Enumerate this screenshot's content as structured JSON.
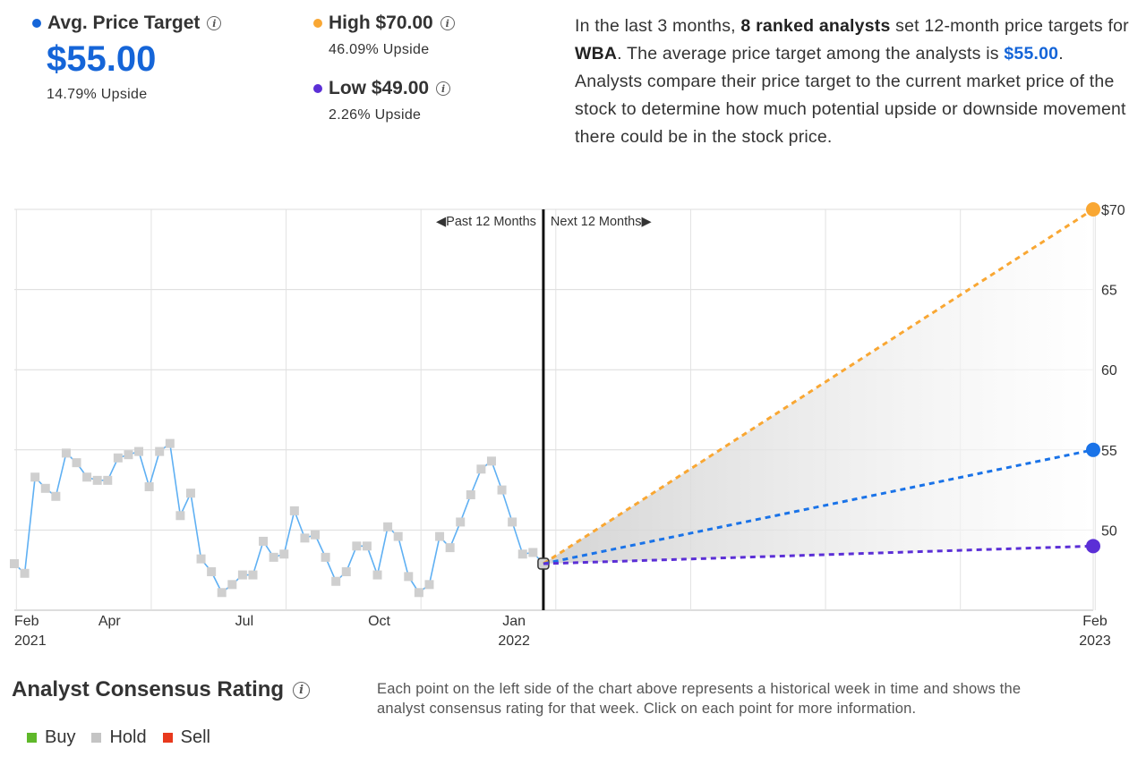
{
  "summary": {
    "avg": {
      "label": "Avg. Price Target",
      "value": "$55.00",
      "upside": "14.79% Upside",
      "color": "#1565d8"
    },
    "high": {
      "label": "High $70.00",
      "upside": "46.09% Upside",
      "color": "#f9a733"
    },
    "low": {
      "label": "Low $49.00",
      "upside": "2.26% Upside",
      "color": "#5b2fd6"
    }
  },
  "description": {
    "p1": "In the last 3 months, ",
    "analysts": "8 ranked analysts",
    "p2": " set 12-month price targets for ",
    "ticker": "WBA",
    "p3": ". The average price target among the analysts is ",
    "avg": "$55.00",
    "p4": ". Analysts compare their price target to the current market price of the stock to determine how much potential upside or downside movement there could be in the stock price."
  },
  "chart_data": {
    "type": "line",
    "past_label": "Past 12 Months",
    "next_label": "Next 12 Months",
    "y_ticks": [
      {
        "value": 70,
        "label": "$70"
      },
      {
        "value": 65,
        "label": "65"
      },
      {
        "value": 60,
        "label": "60"
      },
      {
        "value": 55,
        "label": "55"
      },
      {
        "value": 50,
        "label": "50"
      }
    ],
    "ylim": [
      45,
      70
    ],
    "x_labels": [
      {
        "month": "Feb",
        "year": "2021",
        "week": 0
      },
      {
        "month": "Apr",
        "year": "",
        "week": 9
      },
      {
        "month": "Jul",
        "year": "",
        "week": 22
      },
      {
        "month": "Oct",
        "year": "",
        "week": 35
      },
      {
        "month": "Jan",
        "year": "2022",
        "week": 48
      },
      {
        "month": "Feb",
        "year": "2023",
        "week": 104
      }
    ],
    "history": [
      47.9,
      47.3,
      53.3,
      52.6,
      52.1,
      54.8,
      54.2,
      53.3,
      53.1,
      53.1,
      54.5,
      54.7,
      54.9,
      52.7,
      54.9,
      55.4,
      50.9,
      52.3,
      48.2,
      47.4,
      46.1,
      46.6,
      47.2,
      47.2,
      49.3,
      48.3,
      48.5,
      51.2,
      49.5,
      49.7,
      48.3,
      46.8,
      47.4,
      49.0,
      49.0,
      47.2,
      50.2,
      49.6,
      47.1,
      46.1,
      46.6,
      49.6,
      48.9,
      50.5,
      52.2,
      53.8,
      54.3,
      52.5,
      50.5,
      48.5,
      48.6,
      47.9
    ],
    "current": {
      "week": 51,
      "value": 47.9
    },
    "forecast": [
      {
        "name": "High",
        "target": 70,
        "color": "#f9a733"
      },
      {
        "name": "Average",
        "target": 55,
        "color": "#1a73e8"
      },
      {
        "name": "Low",
        "target": 49,
        "color": "#5b2fd6"
      }
    ],
    "forecast_end_week": 104,
    "history_line_color": "#5fb0f3",
    "marker_color": "#cfcfcf"
  },
  "rating": {
    "title": "Analyst Consensus Rating",
    "legend": [
      {
        "label": "Buy",
        "color": "#5fb82a"
      },
      {
        "label": "Hold",
        "color": "#c4c4c4"
      },
      {
        "label": "Sell",
        "color": "#e8391d"
      }
    ],
    "note": "Each point on the left side of the chart above represents a historical week in time and shows the analyst consensus rating for that week. Click on each point for more information."
  }
}
